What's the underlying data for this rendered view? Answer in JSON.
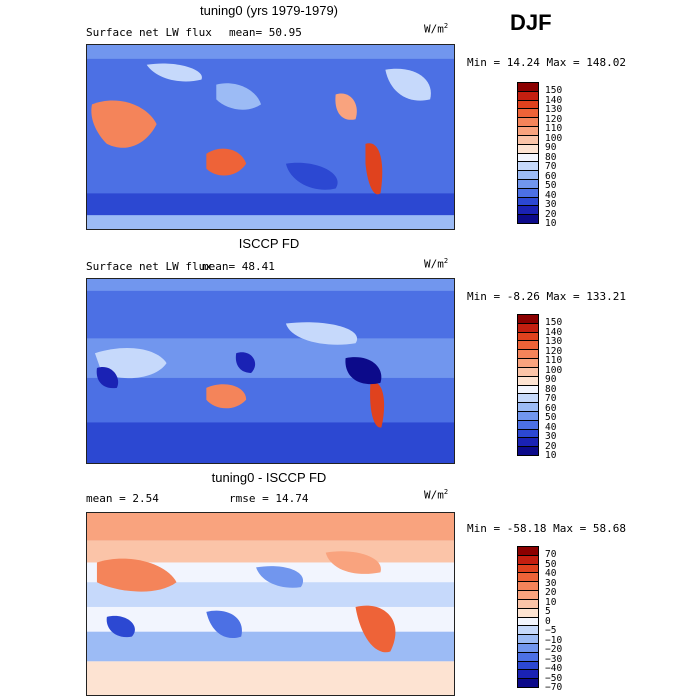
{
  "season": "DJF",
  "panels": [
    {
      "title": "tuning0 (yrs 1979-1979)",
      "variable": "Surface net LW flux",
      "stat_text": "mean=  50.95",
      "unit": "W/m",
      "unit_exp": "2",
      "minmax": "Min =  14.24 Max = 148.02",
      "colorbar_labels": [
        "150",
        "140",
        "130",
        "120",
        "110",
        "100",
        "90",
        "80",
        "70",
        "60",
        "50",
        "40",
        "30",
        "20",
        "10"
      ],
      "colorbar_colors": [
        "#8b0000",
        "#c41f10",
        "#e0421e",
        "#ee6338",
        "#f4845a",
        "#f9a37e",
        "#fbc4a8",
        "#fde3d2",
        "#f2f5fe",
        "#c6d9fb",
        "#9cbbf5",
        "#7196ee",
        "#4c70e4",
        "#2c48d2",
        "#1a22b4",
        "#0c0a8a"
      ]
    },
    {
      "title": "ISCCP FD",
      "variable": "Surface net LW flux",
      "stat_text": "mean=  48.41",
      "unit": "W/m",
      "unit_exp": "2",
      "minmax": "Min =  -8.26 Max = 133.21",
      "colorbar_labels": [
        "150",
        "140",
        "130",
        "120",
        "110",
        "100",
        "90",
        "80",
        "70",
        "60",
        "50",
        "40",
        "30",
        "20",
        "10"
      ],
      "colorbar_colors": [
        "#8b0000",
        "#c41f10",
        "#e0421e",
        "#ee6338",
        "#f4845a",
        "#f9a37e",
        "#fbc4a8",
        "#fde3d2",
        "#f2f5fe",
        "#c6d9fb",
        "#9cbbf5",
        "#7196ee",
        "#4c70e4",
        "#2c48d2",
        "#1a22b4",
        "#0c0a8a"
      ]
    },
    {
      "title": "tuning0 - ISCCP FD",
      "stat_mean": "mean =   2.54",
      "stat_rmse": "rmse =  14.74",
      "unit": "W/m",
      "unit_exp": "2",
      "minmax": "Min = -58.18 Max =  58.68",
      "colorbar_labels": [
        "70",
        "50",
        "40",
        "30",
        "20",
        "10",
        "5",
        "0",
        "−5",
        "−10",
        "−20",
        "−30",
        "−40",
        "−50",
        "−70"
      ],
      "colorbar_colors": [
        "#8b0000",
        "#c41f10",
        "#e0421e",
        "#ee6338",
        "#f4845a",
        "#f9a37e",
        "#fbc4a8",
        "#fde3d2",
        "#f2f5fe",
        "#c6d9fb",
        "#9cbbf5",
        "#7196ee",
        "#4c70e4",
        "#2c48d2",
        "#1a22b4",
        "#0c0a8a"
      ]
    }
  ]
}
